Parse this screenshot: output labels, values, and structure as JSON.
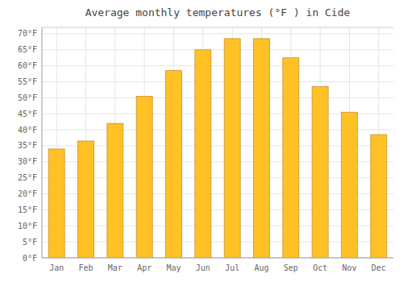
{
  "chart_data": {
    "type": "bar",
    "title": "Average monthly temperatures (°F ) in Cide",
    "categories": [
      "Jan",
      "Feb",
      "Mar",
      "Apr",
      "May",
      "Jun",
      "Jul",
      "Aug",
      "Sep",
      "Oct",
      "Nov",
      "Dec"
    ],
    "values": [
      34,
      36.5,
      42,
      50.5,
      58.5,
      65,
      68.5,
      68.5,
      62.5,
      53.5,
      45.5,
      38.5
    ],
    "color": "#FFC125",
    "ylim": [
      0,
      72
    ],
    "yticks": [
      {
        "value": 0,
        "label": "0°F"
      },
      {
        "value": 5,
        "label": "5°F"
      },
      {
        "value": 10,
        "label": "10°F"
      },
      {
        "value": 15,
        "label": "15°F"
      },
      {
        "value": 20,
        "label": "20°F"
      },
      {
        "value": 25,
        "label": "25°F"
      },
      {
        "value": 30,
        "label": "30°F"
      },
      {
        "value": 35,
        "label": "35°F"
      },
      {
        "value": 40,
        "label": "40°F"
      },
      {
        "value": 45,
        "label": "45°F"
      },
      {
        "value": 50,
        "label": "50°F"
      },
      {
        "value": 55,
        "label": "55°F"
      },
      {
        "value": 60,
        "label": "60°F"
      },
      {
        "value": 65,
        "label": "65°F"
      },
      {
        "value": 70,
        "label": "70°F"
      }
    ],
    "grid": true
  }
}
